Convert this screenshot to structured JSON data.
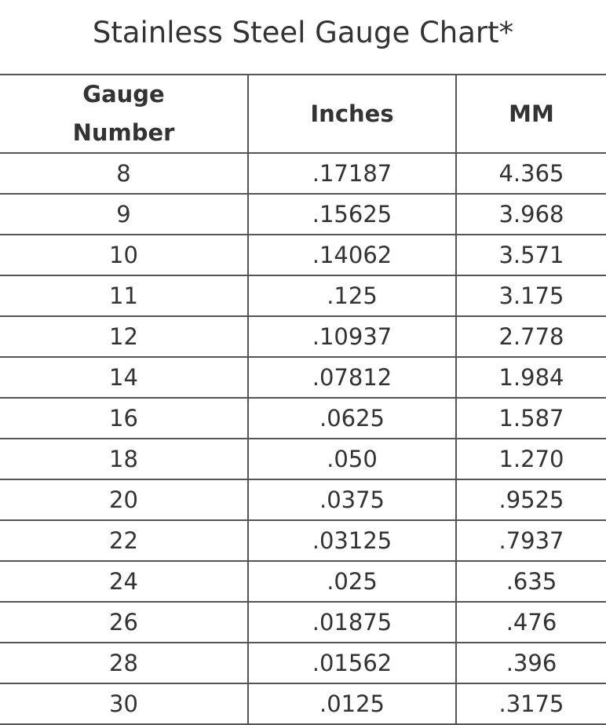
{
  "title": "Stainless Steel Gauge Chart*",
  "headers": {
    "gauge_line1": "Gauge",
    "gauge_line2": "Number",
    "inches": "Inches",
    "mm": "MM"
  },
  "rows": [
    {
      "gauge": "8",
      "inches": ".17187",
      "mm": "4.365"
    },
    {
      "gauge": "9",
      "inches": ".15625",
      "mm": "3.968"
    },
    {
      "gauge": "10",
      "inches": ".14062",
      "mm": "3.571"
    },
    {
      "gauge": "11",
      "inches": ".125",
      "mm": "3.175"
    },
    {
      "gauge": "12",
      "inches": ".10937",
      "mm": "2.778"
    },
    {
      "gauge": "14",
      "inches": ".07812",
      "mm": "1.984"
    },
    {
      "gauge": "16",
      "inches": ".0625",
      "mm": "1.587"
    },
    {
      "gauge": "18",
      "inches": ".050",
      "mm": "1.270"
    },
    {
      "gauge": "20",
      "inches": ".0375",
      "mm": ".9525"
    },
    {
      "gauge": "22",
      "inches": ".03125",
      "mm": ".7937"
    },
    {
      "gauge": "24",
      "inches": ".025",
      "mm": ".635"
    },
    {
      "gauge": "26",
      "inches": ".01875",
      "mm": ".476"
    },
    {
      "gauge": "28",
      "inches": ".01562",
      "mm": ".396"
    },
    {
      "gauge": "30",
      "inches": ".0125",
      "mm": ".3175"
    }
  ]
}
